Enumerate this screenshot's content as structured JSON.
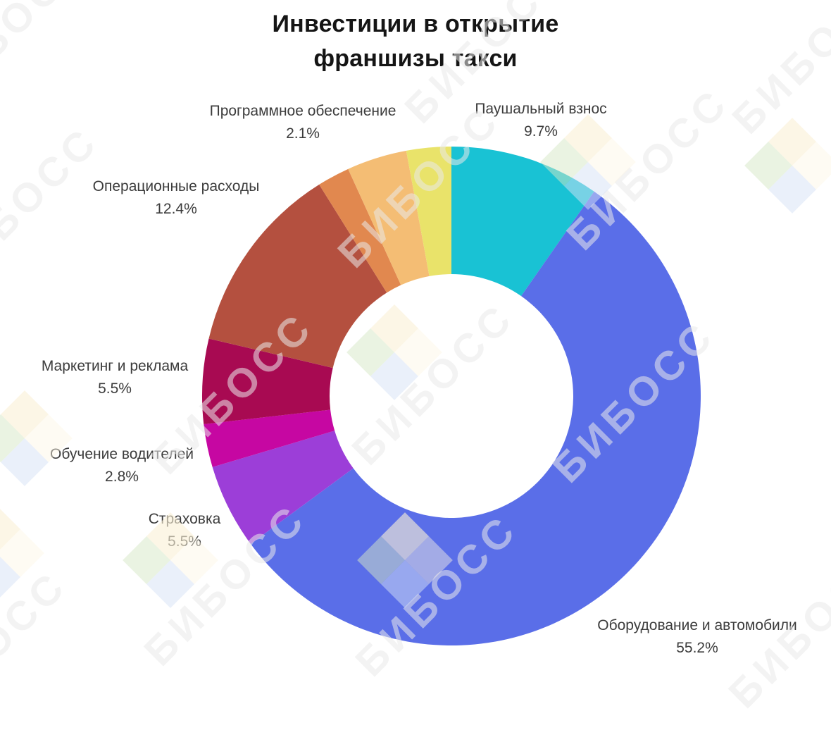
{
  "title": {
    "line1": "Инвестиции в открытие",
    "line2": "франшизы такси"
  },
  "watermark": {
    "text": "БИБОСС"
  },
  "chart_data": {
    "type": "pie",
    "subtype": "donut",
    "title": "Инвестиции в открытие франшизы такси",
    "units": "%",
    "direction": "clockwise",
    "start_angle_deg": 0,
    "hole_ratio": 0.49,
    "legend": "none (outside labels)",
    "slices": [
      {
        "label": "Паушальный взнос",
        "value": 9.7,
        "pct_label": "9.7%",
        "color": "#19c2d4"
      },
      {
        "label": "Оборудование и автомобили",
        "value": 55.2,
        "pct_label": "55.2%",
        "color": "#5a6ee8"
      },
      {
        "label": "Страховка",
        "value": 5.5,
        "pct_label": "5.5%",
        "color": "#9c3ed8"
      },
      {
        "label": "Обучение водителей",
        "value": 2.8,
        "pct_label": "2.8%",
        "color": "#c607a2"
      },
      {
        "label": "Маркетинг и реклама",
        "value": 5.5,
        "pct_label": "5.5%",
        "color": "#a80a52"
      },
      {
        "label": "Операционные расходы",
        "value": 12.4,
        "pct_label": "12.4%",
        "color": "#b4503f"
      },
      {
        "label": "Программное обеспечение",
        "value": 2.1,
        "pct_label": "2.1%",
        "color": "#e1884f"
      },
      {
        "label": "",
        "value": 3.9,
        "pct_label": "",
        "color": "#f4bd74"
      },
      {
        "label": "",
        "value": 2.9,
        "pct_label": "",
        "color": "#e9e36a"
      }
    ]
  }
}
